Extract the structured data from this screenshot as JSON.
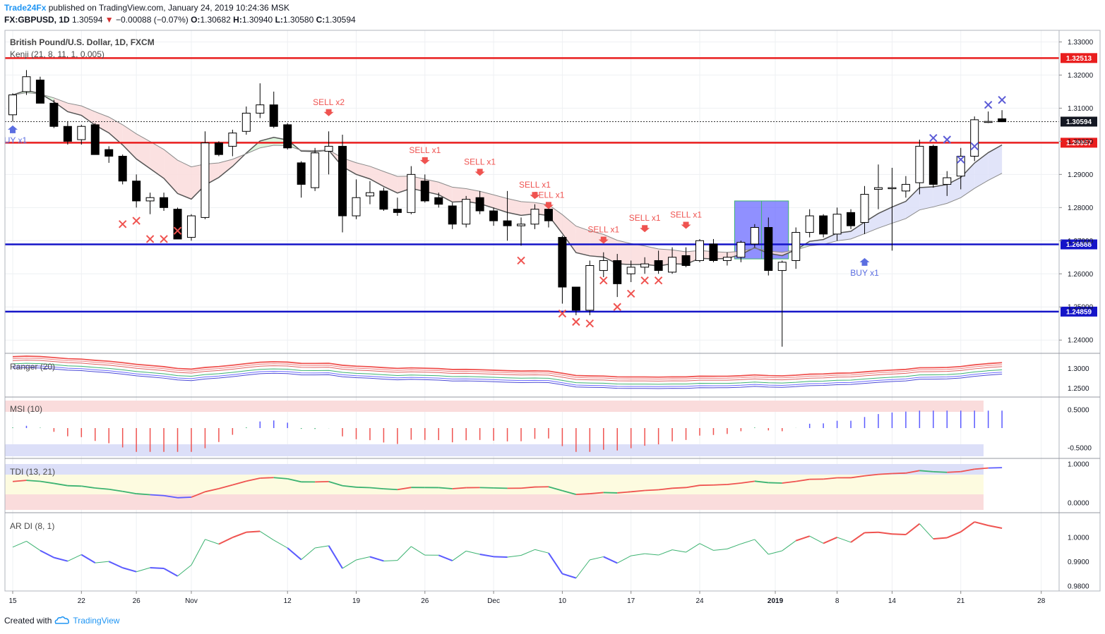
{
  "header": {
    "author": "Trade24Fx",
    "published": "published on TradingView.com, January 24, 2019 10:24:36 MSK",
    "symbol": "FX:GBPUSD, 1D",
    "last": "1.30594",
    "arrow": "▼",
    "change": "−0.00088 (−0.07%)",
    "o_label": "O:",
    "o_val": "1.30682",
    "h_label": "H:",
    "h_val": "1.30940",
    "l_label": "L:",
    "l_val": "1.30580",
    "c_label": "C:",
    "c_val": "1.30594"
  },
  "footer": {
    "created_with": "Created with",
    "brand": "TradingView",
    "logo_icon": "tradingview-cloud-icon"
  },
  "panes": {
    "main_title": "British Pound/U.S. Dollar, 1D, FXCM",
    "main_indicator": "Kenji (21, 8, 11, 1, 0.005)",
    "ranger": "Ranger (20)",
    "msi": "MSI (10)",
    "tdi": "TDI (13, 21)",
    "ardi": "AR DI (8, 1)"
  },
  "colors": {
    "bull": "#ffffff",
    "bear": "#000000",
    "resistance": "#e91e1e",
    "support": "#1414c8",
    "sell": "#ef5350",
    "buy": "#5b6ee1",
    "cross_red": "#ef5350",
    "cross_blue": "#5b5bd6",
    "highlight": "#6b6bff"
  },
  "chart_data": {
    "type": "candlestick",
    "dates": [
      "2018-10-15",
      "2018-10-16",
      "2018-10-17",
      "2018-10-18",
      "2018-10-19",
      "2018-10-22",
      "2018-10-23",
      "2018-10-24",
      "2018-10-25",
      "2018-10-26",
      "2018-10-29",
      "2018-10-30",
      "2018-10-31",
      "2018-11-01",
      "2018-11-02",
      "2018-11-05",
      "2018-11-06",
      "2018-11-07",
      "2018-11-08",
      "2018-11-09",
      "2018-11-12",
      "2018-11-13",
      "2018-11-14",
      "2018-11-15",
      "2018-11-16",
      "2018-11-19",
      "2018-11-20",
      "2018-11-21",
      "2018-11-22",
      "2018-11-23",
      "2018-11-26",
      "2018-11-27",
      "2018-11-28",
      "2018-11-29",
      "2018-11-30",
      "2018-12-03",
      "2018-12-04",
      "2018-12-05",
      "2018-12-06",
      "2018-12-07",
      "2018-12-10",
      "2018-12-11",
      "2018-12-12",
      "2018-12-13",
      "2018-12-14",
      "2018-12-17",
      "2018-12-18",
      "2018-12-19",
      "2018-12-20",
      "2018-12-21",
      "2018-12-24",
      "2018-12-25",
      "2018-12-26",
      "2018-12-27",
      "2018-12-28",
      "2018-12-31",
      "2019-01-02",
      "2019-01-03",
      "2019-01-04",
      "2019-01-07",
      "2019-01-08",
      "2019-01-09",
      "2019-01-10",
      "2019-01-11",
      "2019-01-14",
      "2019-01-15",
      "2019-01-16",
      "2019-01-17",
      "2019-01-18",
      "2019-01-21",
      "2019-01-22",
      "2019-01-23",
      "2019-01-24"
    ],
    "ohlc": [
      [
        1.308,
        1.314,
        1.306,
        1.3145
      ],
      [
        1.315,
        1.3195,
        1.314,
        1.3215
      ],
      [
        1.3185,
        1.3115,
        1.3115,
        1.3195
      ],
      [
        1.3115,
        1.3045,
        1.304,
        1.3125
      ],
      [
        1.3045,
        1.3,
        1.299,
        1.306
      ],
      [
        1.3005,
        1.3045,
        1.299,
        1.305
      ],
      [
        1.305,
        1.296,
        1.296,
        1.3055
      ],
      [
        1.2975,
        1.2955,
        1.2935,
        1.2985
      ],
      [
        1.2955,
        1.288,
        1.287,
        1.296
      ],
      [
        1.288,
        1.282,
        1.28,
        1.29
      ],
      [
        1.282,
        1.283,
        1.278,
        1.2845
      ],
      [
        1.283,
        1.28,
        1.279,
        1.2845
      ],
      [
        1.2795,
        1.2705,
        1.2705,
        1.28
      ],
      [
        1.271,
        1.2775,
        1.27,
        1.278
      ],
      [
        1.277,
        1.2995,
        1.2765,
        1.303
      ],
      [
        1.2995,
        1.296,
        1.2955,
        1.3
      ],
      [
        1.2985,
        1.3025,
        1.2955,
        1.3035
      ],
      [
        1.303,
        1.3085,
        1.302,
        1.3105
      ],
      [
        1.3085,
        1.311,
        1.307,
        1.3175
      ],
      [
        1.311,
        1.3045,
        1.304,
        1.315
      ],
      [
        1.305,
        1.298,
        1.2975,
        1.3055
      ],
      [
        1.2935,
        1.287,
        1.283,
        1.294
      ],
      [
        1.286,
        1.2965,
        1.285,
        1.298
      ],
      [
        1.297,
        1.2985,
        1.29,
        1.303
      ],
      [
        1.2985,
        1.2775,
        1.2725,
        1.302
      ],
      [
        1.2775,
        1.283,
        1.2765,
        1.2885
      ],
      [
        1.2835,
        1.2845,
        1.281,
        1.288
      ],
      [
        1.285,
        1.2795,
        1.279,
        1.286
      ],
      [
        1.2795,
        1.2785,
        1.2775,
        1.283
      ],
      [
        1.2785,
        1.29,
        1.278,
        1.2925
      ],
      [
        1.288,
        1.282,
        1.2815,
        1.29
      ],
      [
        1.283,
        1.281,
        1.28,
        1.2845
      ],
      [
        1.2805,
        1.275,
        1.2735,
        1.2815
      ],
      [
        1.275,
        1.2825,
        1.274,
        1.2835
      ],
      [
        1.283,
        1.279,
        1.278,
        1.285
      ],
      [
        1.279,
        1.276,
        1.2745,
        1.28
      ],
      [
        1.276,
        1.2745,
        1.27,
        1.285
      ],
      [
        1.2745,
        1.275,
        1.2685,
        1.277
      ],
      [
        1.275,
        1.2795,
        1.2735,
        1.281
      ],
      [
        1.2795,
        1.276,
        1.274,
        1.281
      ],
      [
        1.271,
        1.256,
        1.251,
        1.2715
      ],
      [
        1.256,
        1.249,
        1.2475,
        1.256
      ],
      [
        1.249,
        1.2625,
        1.2475,
        1.264
      ],
      [
        1.261,
        1.264,
        1.259,
        1.2665
      ],
      [
        1.264,
        1.257,
        1.253,
        1.266
      ],
      [
        1.26,
        1.262,
        1.2575,
        1.264
      ],
      [
        1.262,
        1.263,
        1.26,
        1.265
      ],
      [
        1.264,
        1.261,
        1.26,
        1.267
      ],
      [
        1.2605,
        1.265,
        1.26,
        1.268
      ],
      [
        1.2655,
        1.2625,
        1.262,
        1.268
      ],
      [
        1.264,
        1.27,
        1.2635,
        1.2705
      ],
      [
        1.269,
        1.264,
        1.2635,
        1.2705
      ],
      [
        1.264,
        1.265,
        1.2625,
        1.2665
      ],
      [
        1.265,
        1.2695,
        1.2635,
        1.27
      ],
      [
        1.269,
        1.274,
        1.268,
        1.275
      ],
      [
        1.274,
        1.261,
        1.2595,
        1.277
      ],
      [
        1.261,
        1.2635,
        1.238,
        1.264
      ],
      [
        1.264,
        1.2725,
        1.2615,
        1.274
      ],
      [
        1.2725,
        1.2775,
        1.271,
        1.2795
      ],
      [
        1.2775,
        1.272,
        1.271,
        1.278
      ],
      [
        1.272,
        1.278,
        1.27,
        1.28
      ],
      [
        1.2785,
        1.2745,
        1.2735,
        1.2795
      ],
      [
        1.2755,
        1.284,
        1.272,
        1.2865
      ],
      [
        1.2855,
        1.286,
        1.2795,
        1.293
      ],
      [
        1.286,
        1.286,
        1.267,
        1.292
      ],
      [
        1.285,
        1.287,
        1.283,
        1.2895
      ],
      [
        1.2875,
        1.2985,
        1.284,
        1.3005
      ],
      [
        1.2985,
        1.287,
        1.286,
        1.299
      ],
      [
        1.287,
        1.289,
        1.2835,
        1.291
      ],
      [
        1.2895,
        1.2955,
        1.2855,
        1.298
      ],
      [
        1.2955,
        1.3065,
        1.294,
        1.3075
      ],
      [
        1.306,
        1.306,
        1.3055,
        1.309
      ],
      [
        1.3068,
        1.3059,
        1.3058,
        1.3094
      ]
    ],
    "ylim": [
      1.236,
      1.3335
    ],
    "y_ticks": [
      "1.24000",
      "1.25000",
      "1.26000",
      "1.27000",
      "1.28000",
      "1.29000",
      "1.30000",
      "1.31000",
      "1.32000",
      "1.33000"
    ],
    "x_ticks": [
      {
        "label": "15",
        "date": "2018-10-15"
      },
      {
        "label": "22",
        "date": "2018-10-22"
      },
      {
        "label": "26",
        "date": "2018-10-26"
      },
      {
        "label": "Nov",
        "date": "2018-11-01"
      },
      {
        "label": "12",
        "date": "2018-11-12"
      },
      {
        "label": "19",
        "date": "2018-11-19"
      },
      {
        "label": "26",
        "date": "2018-11-26"
      },
      {
        "label": "Dec",
        "date": "2018-12-03"
      },
      {
        "label": "10",
        "date": "2018-12-10"
      },
      {
        "label": "17",
        "date": "2018-12-17"
      },
      {
        "label": "24",
        "date": "2018-12-24"
      },
      {
        "label": "2019",
        "date": "2019-01-01"
      },
      {
        "label": "8",
        "date": "2019-01-08"
      },
      {
        "label": "14",
        "date": "2019-01-14"
      },
      {
        "label": "21",
        "date": "2019-01-21"
      },
      {
        "label": "28",
        "date": "2019-01-28"
      }
    ],
    "levels": [
      {
        "value": 1.32513,
        "label": "1.32513",
        "kind": "resistance"
      },
      {
        "value": 1.29957,
        "label": "1.29957",
        "kind": "resistance"
      },
      {
        "value": 1.26888,
        "label": "1.26888",
        "kind": "support"
      },
      {
        "value": 1.24859,
        "label": "1.24859",
        "kind": "support"
      }
    ],
    "last_price": {
      "value": 1.30594,
      "label": "1.30594"
    },
    "signals": [
      {
        "text": "UY x1",
        "date": "2018-10-15",
        "kind": "buy",
        "value": 1.3035
      },
      {
        "text": "SELL x2",
        "date": "2018-11-15",
        "kind": "sell",
        "value": 1.308
      },
      {
        "text": "SELL x1",
        "date": "2018-11-26",
        "kind": "sell",
        "value": 1.2935
      },
      {
        "text": "SELL x1",
        "date": "2018-11-30",
        "kind": "sell",
        "value": 1.29
      },
      {
        "text": "SELL x1",
        "date": "2018-12-06",
        "kind": "sell",
        "value": 1.283
      },
      {
        "text": "SELL x1",
        "date": "2018-12-07",
        "kind": "sell",
        "value": 1.28
      },
      {
        "text": "SELL x1",
        "date": "2018-12-13",
        "kind": "sell",
        "value": 1.2695
      },
      {
        "text": "SELL x1",
        "date": "2018-12-18",
        "kind": "sell",
        "value": 1.273
      },
      {
        "text": "SELL x1",
        "date": "2018-12-21",
        "kind": "sell",
        "value": 1.274
      },
      {
        "text": "BUY x1",
        "date": "2019-01-10",
        "kind": "buy",
        "value": 1.2635
      }
    ],
    "crosses_red": [
      {
        "date": "2018-10-25",
        "value": 1.275
      },
      {
        "date": "2018-10-26",
        "value": 1.276
      },
      {
        "date": "2018-10-29",
        "value": 1.2705
      },
      {
        "date": "2018-10-30",
        "value": 1.2705
      },
      {
        "date": "2018-10-31",
        "value": 1.273
      },
      {
        "date": "2018-12-05",
        "value": 1.264
      },
      {
        "date": "2018-12-10",
        "value": 1.248
      },
      {
        "date": "2018-12-11",
        "value": 1.2455
      },
      {
        "date": "2018-12-12",
        "value": 1.245
      },
      {
        "date": "2018-12-13",
        "value": 1.258
      },
      {
        "date": "2018-12-14",
        "value": 1.25
      },
      {
        "date": "2018-12-17",
        "value": 1.254
      },
      {
        "date": "2018-12-18",
        "value": 1.258
      },
      {
        "date": "2018-12-19",
        "value": 1.258
      }
    ],
    "crosses_blue": [
      {
        "date": "2019-01-17",
        "value": 1.301
      },
      {
        "date": "2019-01-18",
        "value": 1.3005
      },
      {
        "date": "2019-01-21",
        "value": 1.2945
      },
      {
        "date": "2019-01-22",
        "value": 1.2985
      },
      {
        "date": "2019-01-23",
        "value": 1.311
      },
      {
        "date": "2019-01-24",
        "value": 1.3125
      }
    ],
    "highlight": {
      "from": "2018-12-27",
      "to": "2019-01-02",
      "top": 1.282,
      "bottom": 1.2645
    },
    "ranger": {
      "y_ticks": [
        "1.3000",
        "1.2500"
      ]
    },
    "msi": {
      "y_ticks": [
        "0.5000",
        "-0.5000"
      ]
    },
    "tdi": {
      "y_ticks": [
        "1.0000",
        "0.0000"
      ]
    },
    "ardi": {
      "y_ticks": [
        "1.0000",
        "0.9900",
        "0.9800"
      ]
    }
  }
}
